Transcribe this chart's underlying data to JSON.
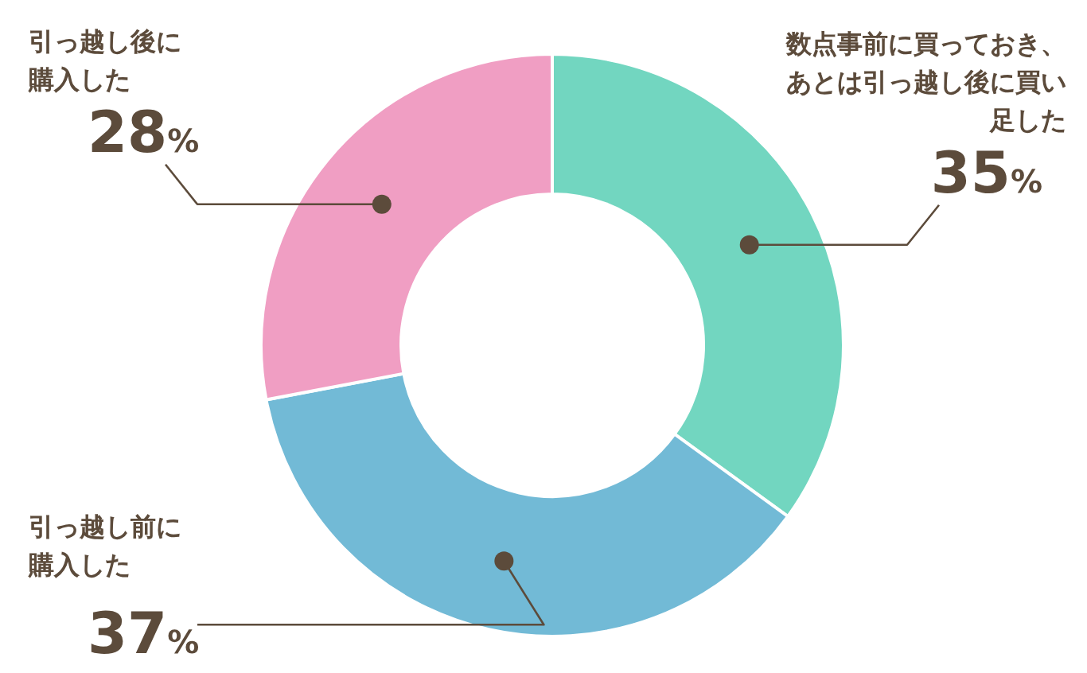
{
  "chart_data": {
    "type": "donut",
    "categories": [
      "数点事前に買っておき、あとは引っ越し後に買い足した",
      "引っ越し前に購入した",
      "引っ越し後に購入した"
    ],
    "values": [
      35,
      37,
      28
    ],
    "colors": [
      "#72d6c0",
      "#72bad6",
      "#f09ec3"
    ],
    "value_labels": [
      "35%",
      "37%",
      "28%"
    ],
    "legend": false
  }
}
